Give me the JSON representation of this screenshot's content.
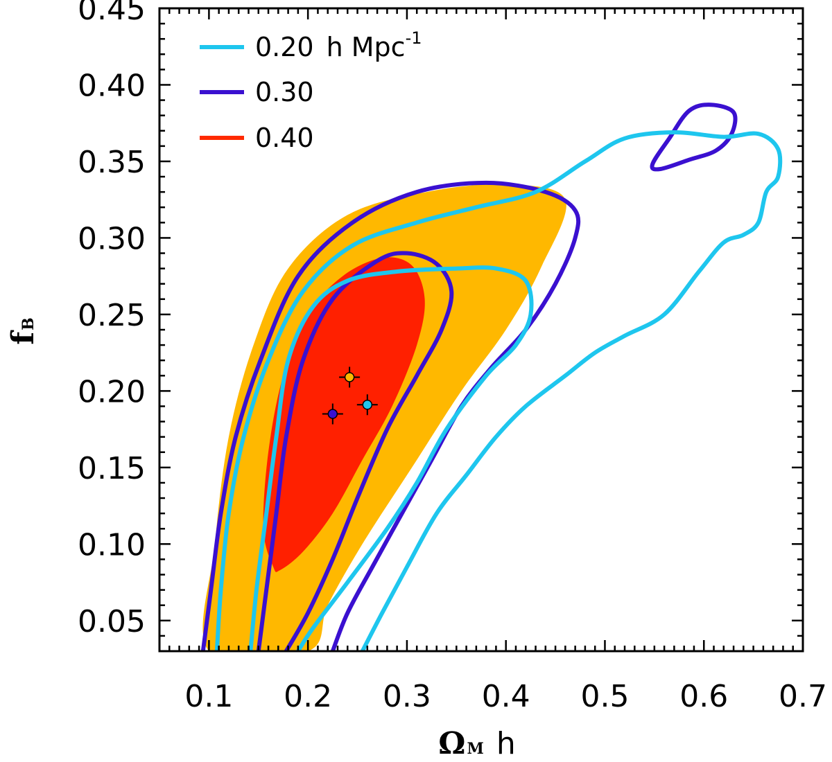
{
  "chart_data": {
    "type": "contour",
    "title": "",
    "xlabel": {
      "symbol": "Ω",
      "subscript": "M",
      "suffix": "h"
    },
    "ylabel": {
      "symbol": "f",
      "subscript": "B"
    },
    "xlim": [
      0.05,
      0.7
    ],
    "ylim": [
      0.03,
      0.45
    ],
    "xticks": [
      "0.1",
      "0.2",
      "0.3",
      "0.4",
      "0.5",
      "0.6",
      "0.7"
    ],
    "yticks": [
      "0.05",
      "0.10",
      "0.15",
      "0.20",
      "0.25",
      "0.30",
      "0.35",
      "0.40",
      "0.45"
    ],
    "legend": [
      {
        "label": "0.20",
        "unit": "h Mpc",
        "exponent": "-1",
        "color": "#1ec6ee",
        "style": "line"
      },
      {
        "label": "0.30",
        "color": "#3a10d0",
        "style": "line"
      },
      {
        "label": "0.40",
        "color": "#ff2a00",
        "style": "line"
      }
    ],
    "colors": {
      "orange_fill": "#ffb800",
      "red_fill": "#ff2000",
      "cyan_line": "#1ec6ee",
      "purple_line": "#3a10d0",
      "axis": "#000000"
    },
    "series": [
      {
        "name": "0.40 outer contour (filled)",
        "fill": "#ffb800",
        "points": [
          [
            0.1,
            0.03
          ],
          [
            0.106,
            0.1
          ],
          [
            0.12,
            0.17
          ],
          [
            0.145,
            0.23
          ],
          [
            0.18,
            0.28
          ],
          [
            0.24,
            0.315
          ],
          [
            0.32,
            0.33
          ],
          [
            0.4,
            0.335
          ],
          [
            0.46,
            0.325
          ],
          [
            0.435,
            0.28
          ],
          [
            0.4,
            0.24
          ],
          [
            0.355,
            0.2
          ],
          [
            0.305,
            0.15
          ],
          [
            0.255,
            0.1
          ],
          [
            0.22,
            0.06
          ],
          [
            0.2,
            0.03
          ]
        ]
      },
      {
        "name": "0.40 inner contour (filled)",
        "fill": "#ff2000",
        "points": [
          [
            0.165,
            0.085
          ],
          [
            0.155,
            0.11
          ],
          [
            0.16,
            0.16
          ],
          [
            0.175,
            0.21
          ],
          [
            0.2,
            0.25
          ],
          [
            0.235,
            0.275
          ],
          [
            0.275,
            0.287
          ],
          [
            0.305,
            0.282
          ],
          [
            0.318,
            0.26
          ],
          [
            0.31,
            0.23
          ],
          [
            0.285,
            0.19
          ],
          [
            0.255,
            0.155
          ],
          [
            0.225,
            0.12
          ],
          [
            0.195,
            0.095
          ],
          [
            0.172,
            0.083
          ]
        ]
      },
      {
        "name": "0.30 outer contour",
        "color": "#3a10d0",
        "points": [
          [
            0.094,
            0.03
          ],
          [
            0.102,
            0.07
          ],
          [
            0.112,
            0.12
          ],
          [
            0.127,
            0.17
          ],
          [
            0.152,
            0.22
          ],
          [
            0.19,
            0.275
          ],
          [
            0.245,
            0.31
          ],
          [
            0.31,
            0.33
          ],
          [
            0.38,
            0.336
          ],
          [
            0.44,
            0.33
          ],
          [
            0.47,
            0.318
          ],
          [
            0.47,
            0.3
          ],
          [
            0.45,
            0.27
          ],
          [
            0.42,
            0.24
          ],
          [
            0.385,
            0.215
          ],
          [
            0.355,
            0.19
          ],
          [
            0.325,
            0.155
          ],
          [
            0.295,
            0.12
          ],
          [
            0.265,
            0.085
          ],
          [
            0.24,
            0.055
          ],
          [
            0.225,
            0.03
          ]
        ]
      },
      {
        "name": "0.30 inner contour",
        "color": "#3a10d0",
        "points": [
          [
            0.15,
            0.03
          ],
          [
            0.158,
            0.07
          ],
          [
            0.168,
            0.12
          ],
          [
            0.178,
            0.17
          ],
          [
            0.195,
            0.22
          ],
          [
            0.225,
            0.26
          ],
          [
            0.27,
            0.285
          ],
          [
            0.3,
            0.29
          ],
          [
            0.33,
            0.283
          ],
          [
            0.345,
            0.265
          ],
          [
            0.335,
            0.24
          ],
          [
            0.31,
            0.21
          ],
          [
            0.28,
            0.175
          ],
          [
            0.25,
            0.13
          ],
          [
            0.225,
            0.09
          ],
          [
            0.2,
            0.055
          ],
          [
            0.178,
            0.03
          ]
        ]
      },
      {
        "name": "0.30 island",
        "color": "#3a10d0",
        "points": [
          [
            0.548,
            0.348
          ],
          [
            0.565,
            0.365
          ],
          [
            0.585,
            0.383
          ],
          [
            0.607,
            0.387
          ],
          [
            0.63,
            0.382
          ],
          [
            0.628,
            0.368
          ],
          [
            0.612,
            0.357
          ],
          [
            0.585,
            0.351
          ],
          [
            0.556,
            0.345
          ]
        ]
      },
      {
        "name": "0.20 outer contour",
        "color": "#1ec6ee",
        "points": [
          [
            0.108,
            0.03
          ],
          [
            0.112,
            0.07
          ],
          [
            0.12,
            0.12
          ],
          [
            0.135,
            0.17
          ],
          [
            0.16,
            0.22
          ],
          [
            0.195,
            0.265
          ],
          [
            0.245,
            0.295
          ],
          [
            0.31,
            0.31
          ],
          [
            0.37,
            0.32
          ],
          [
            0.43,
            0.33
          ],
          [
            0.48,
            0.35
          ],
          [
            0.52,
            0.365
          ],
          [
            0.57,
            0.369
          ],
          [
            0.62,
            0.366
          ],
          [
            0.655,
            0.368
          ],
          [
            0.675,
            0.358
          ],
          [
            0.675,
            0.34
          ],
          [
            0.663,
            0.33
          ],
          [
            0.655,
            0.31
          ],
          [
            0.64,
            0.302
          ],
          [
            0.62,
            0.297
          ],
          [
            0.595,
            0.278
          ],
          [
            0.56,
            0.25
          ],
          [
            0.52,
            0.236
          ],
          [
            0.49,
            0.225
          ],
          [
            0.46,
            0.21
          ],
          [
            0.42,
            0.19
          ],
          [
            0.39,
            0.17
          ],
          [
            0.36,
            0.145
          ],
          [
            0.33,
            0.12
          ],
          [
            0.3,
            0.085
          ],
          [
            0.275,
            0.055
          ],
          [
            0.255,
            0.03
          ]
        ]
      },
      {
        "name": "0.20 inner contour",
        "color": "#1ec6ee",
        "points": [
          [
            0.142,
            0.03
          ],
          [
            0.148,
            0.07
          ],
          [
            0.158,
            0.12
          ],
          [
            0.168,
            0.17
          ],
          [
            0.18,
            0.22
          ],
          [
            0.205,
            0.255
          ],
          [
            0.24,
            0.272
          ],
          [
            0.29,
            0.278
          ],
          [
            0.35,
            0.28
          ],
          [
            0.39,
            0.28
          ],
          [
            0.42,
            0.272
          ],
          [
            0.425,
            0.25
          ],
          [
            0.41,
            0.23
          ],
          [
            0.38,
            0.21
          ],
          [
            0.34,
            0.175
          ],
          [
            0.31,
            0.14
          ],
          [
            0.28,
            0.11
          ],
          [
            0.24,
            0.075
          ],
          [
            0.205,
            0.045
          ],
          [
            0.19,
            0.03
          ]
        ]
      }
    ],
    "points": [
      {
        "name": "orange best-fit",
        "x": 0.242,
        "y": 0.209,
        "color": "#ffb800"
      },
      {
        "name": "purple best-fit",
        "x": 0.225,
        "y": 0.185,
        "color": "#3a10d0"
      },
      {
        "name": "cyan best-fit",
        "x": 0.26,
        "y": 0.191,
        "color": "#1ec6ee"
      }
    ]
  }
}
